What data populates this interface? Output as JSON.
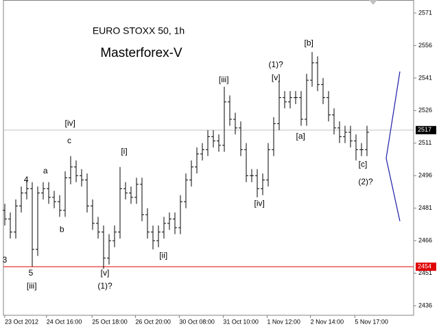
{
  "chart_data": {
    "type": "ohlc",
    "title": "EURO STOXX 50, 1h",
    "subtitle": "Masterforex-V",
    "color": "#000000",
    "open": [
      2480,
      2476,
      2470,
      2482,
      2488,
      2490,
      2462,
      2488,
      2490,
      2486,
      2484,
      2480,
      2495,
      2500,
      2496,
      2494,
      2482,
      2474,
      2470,
      2458,
      2466,
      2470,
      2490,
      2488,
      2486,
      2492,
      2478,
      2470,
      2466,
      2470,
      2474,
      2476,
      2472,
      2484,
      2494,
      2500,
      2506,
      2508,
      2514,
      2512,
      2510,
      2530,
      2522,
      2518,
      2508,
      2496,
      2496,
      2490,
      2494,
      2508,
      2520,
      2532,
      2530,
      2532,
      2532,
      2522,
      2540,
      2548,
      2538,
      2532,
      2524,
      2518,
      2514,
      2516,
      2512,
      2508,
      2508
    ],
    "high": [
      2483,
      2479,
      2485,
      2491,
      2494,
      2493,
      2491,
      2493,
      2493,
      2489,
      2487,
      2498,
      2505,
      2503,
      2499,
      2497,
      2485,
      2477,
      2473,
      2469,
      2473,
      2500,
      2493,
      2491,
      2495,
      2495,
      2481,
      2473,
      2473,
      2477,
      2479,
      2479,
      2487,
      2497,
      2503,
      2509,
      2511,
      2517,
      2517,
      2515,
      2537,
      2533,
      2525,
      2521,
      2511,
      2499,
      2499,
      2497,
      2511,
      2523,
      2540,
      2535,
      2535,
      2535,
      2535,
      2543,
      2553,
      2551,
      2541,
      2535,
      2527,
      2521,
      2519,
      2519,
      2515,
      2511,
      2519
    ],
    "low": [
      2473,
      2467,
      2467,
      2479,
      2485,
      2454,
      2459,
      2485,
      2483,
      2481,
      2477,
      2477,
      2492,
      2493,
      2491,
      2479,
      2471,
      2467,
      2453,
      2455,
      2463,
      2467,
      2485,
      2483,
      2483,
      2475,
      2467,
      2462,
      2463,
      2467,
      2471,
      2469,
      2469,
      2481,
      2491,
      2497,
      2503,
      2505,
      2509,
      2507,
      2507,
      2519,
      2515,
      2505,
      2493,
      2493,
      2486,
      2487,
      2491,
      2505,
      2517,
      2527,
      2527,
      2529,
      2519,
      2519,
      2537,
      2535,
      2529,
      2521,
      2515,
      2511,
      2511,
      2509,
      2503,
      2505,
      2505
    ],
    "close": [
      2476,
      2470,
      2482,
      2488,
      2490,
      2462,
      2488,
      2490,
      2486,
      2484,
      2480,
      2495,
      2500,
      2496,
      2494,
      2482,
      2474,
      2470,
      2458,
      2466,
      2470,
      2490,
      2488,
      2486,
      2492,
      2478,
      2470,
      2466,
      2470,
      2474,
      2476,
      2472,
      2484,
      2494,
      2500,
      2506,
      2508,
      2514,
      2512,
      2510,
      2530,
      2522,
      2518,
      2508,
      2496,
      2496,
      2490,
      2494,
      2508,
      2520,
      2532,
      2530,
      2532,
      2532,
      2522,
      2540,
      2548,
      2538,
      2532,
      2524,
      2518,
      2514,
      2516,
      2512,
      2508,
      2508,
      2516
    ],
    "xlim": [
      -0.25,
      74.5
    ],
    "xticks": [
      {
        "value": 0,
        "label": "23 Oct 2012"
      },
      {
        "value": 7.6,
        "label": "24 Oct 16:00"
      },
      {
        "value": 15.9,
        "label": "25 Oct 18:00"
      },
      {
        "value": 23.8,
        "label": "26 Oct 20:00"
      },
      {
        "value": 31.8,
        "label": "30 Oct 08:00"
      },
      {
        "value": 39.8,
        "label": "31 Oct 10:00"
      },
      {
        "value": 47.8,
        "label": "1 Nov 12:00"
      },
      {
        "value": 55.7,
        "label": "2 Nov 14:00"
      },
      {
        "value": 63.8,
        "label": "5 Nov 17:00"
      }
    ],
    "ylim": [
      2431.6,
      2577
    ],
    "yticks": [
      2436,
      2451,
      2466,
      2481,
      2496,
      2511,
      2526,
      2541,
      2556,
      2571
    ],
    "grid": false,
    "hlines": [
      {
        "value": 2517,
        "color": "#c0c0c0",
        "label_bg": "#000000",
        "label_color": "#ffffff"
      },
      {
        "value": 2454,
        "color": "#e00000",
        "label_bg": "#e00000",
        "label_color": "#ffffff"
      }
    ],
    "projection": {
      "color": "#1a1aa6",
      "points": [
        [
          72,
          2544
        ],
        [
          69.5,
          2504
        ],
        [
          72,
          2475
        ]
      ]
    },
    "annotations": [
      {
        "text": "3",
        "x": 0,
        "y": 2457
      },
      {
        "text": "5",
        "x": 4.75,
        "y": 2451
      },
      {
        "text": "[iii]",
        "x": 4.9,
        "y": 2445
      },
      {
        "text": "4",
        "x": 3.9,
        "y": 2494
      },
      {
        "text": "a",
        "x": 7.4,
        "y": 2498
      },
      {
        "text": "b",
        "x": 10.4,
        "y": 2471
      },
      {
        "text": "c",
        "x": 11.75,
        "y": 2512
      },
      {
        "text": "[iv]",
        "x": 11.9,
        "y": 2520
      },
      {
        "text": "[i]",
        "x": 21.75,
        "y": 2507
      },
      {
        "text": "[v]",
        "x": 18.25,
        "y": 2451
      },
      {
        "text": "(1)?",
        "x": 18.25,
        "y": 2445
      },
      {
        "text": "[ii]",
        "x": 28.9,
        "y": 2459
      },
      {
        "text": "[iii]",
        "x": 39.9,
        "y": 2540
      },
      {
        "text": "[iv]",
        "x": 46.4,
        "y": 2483
      },
      {
        "text": "(1)?",
        "x": 49.4,
        "y": 2547
      },
      {
        "text": "[v]",
        "x": 49.4,
        "y": 2541
      },
      {
        "text": "[a]",
        "x": 53.9,
        "y": 2514
      },
      {
        "text": "[b]",
        "x": 55.4,
        "y": 2557
      },
      {
        "text": "[c]",
        "x": 65.25,
        "y": 2501
      },
      {
        "text": "(2)?",
        "x": 65.75,
        "y": 2493
      }
    ],
    "annotation_color": "#000000",
    "title_color": "#000000",
    "subtitle_color": "#ff0000"
  }
}
